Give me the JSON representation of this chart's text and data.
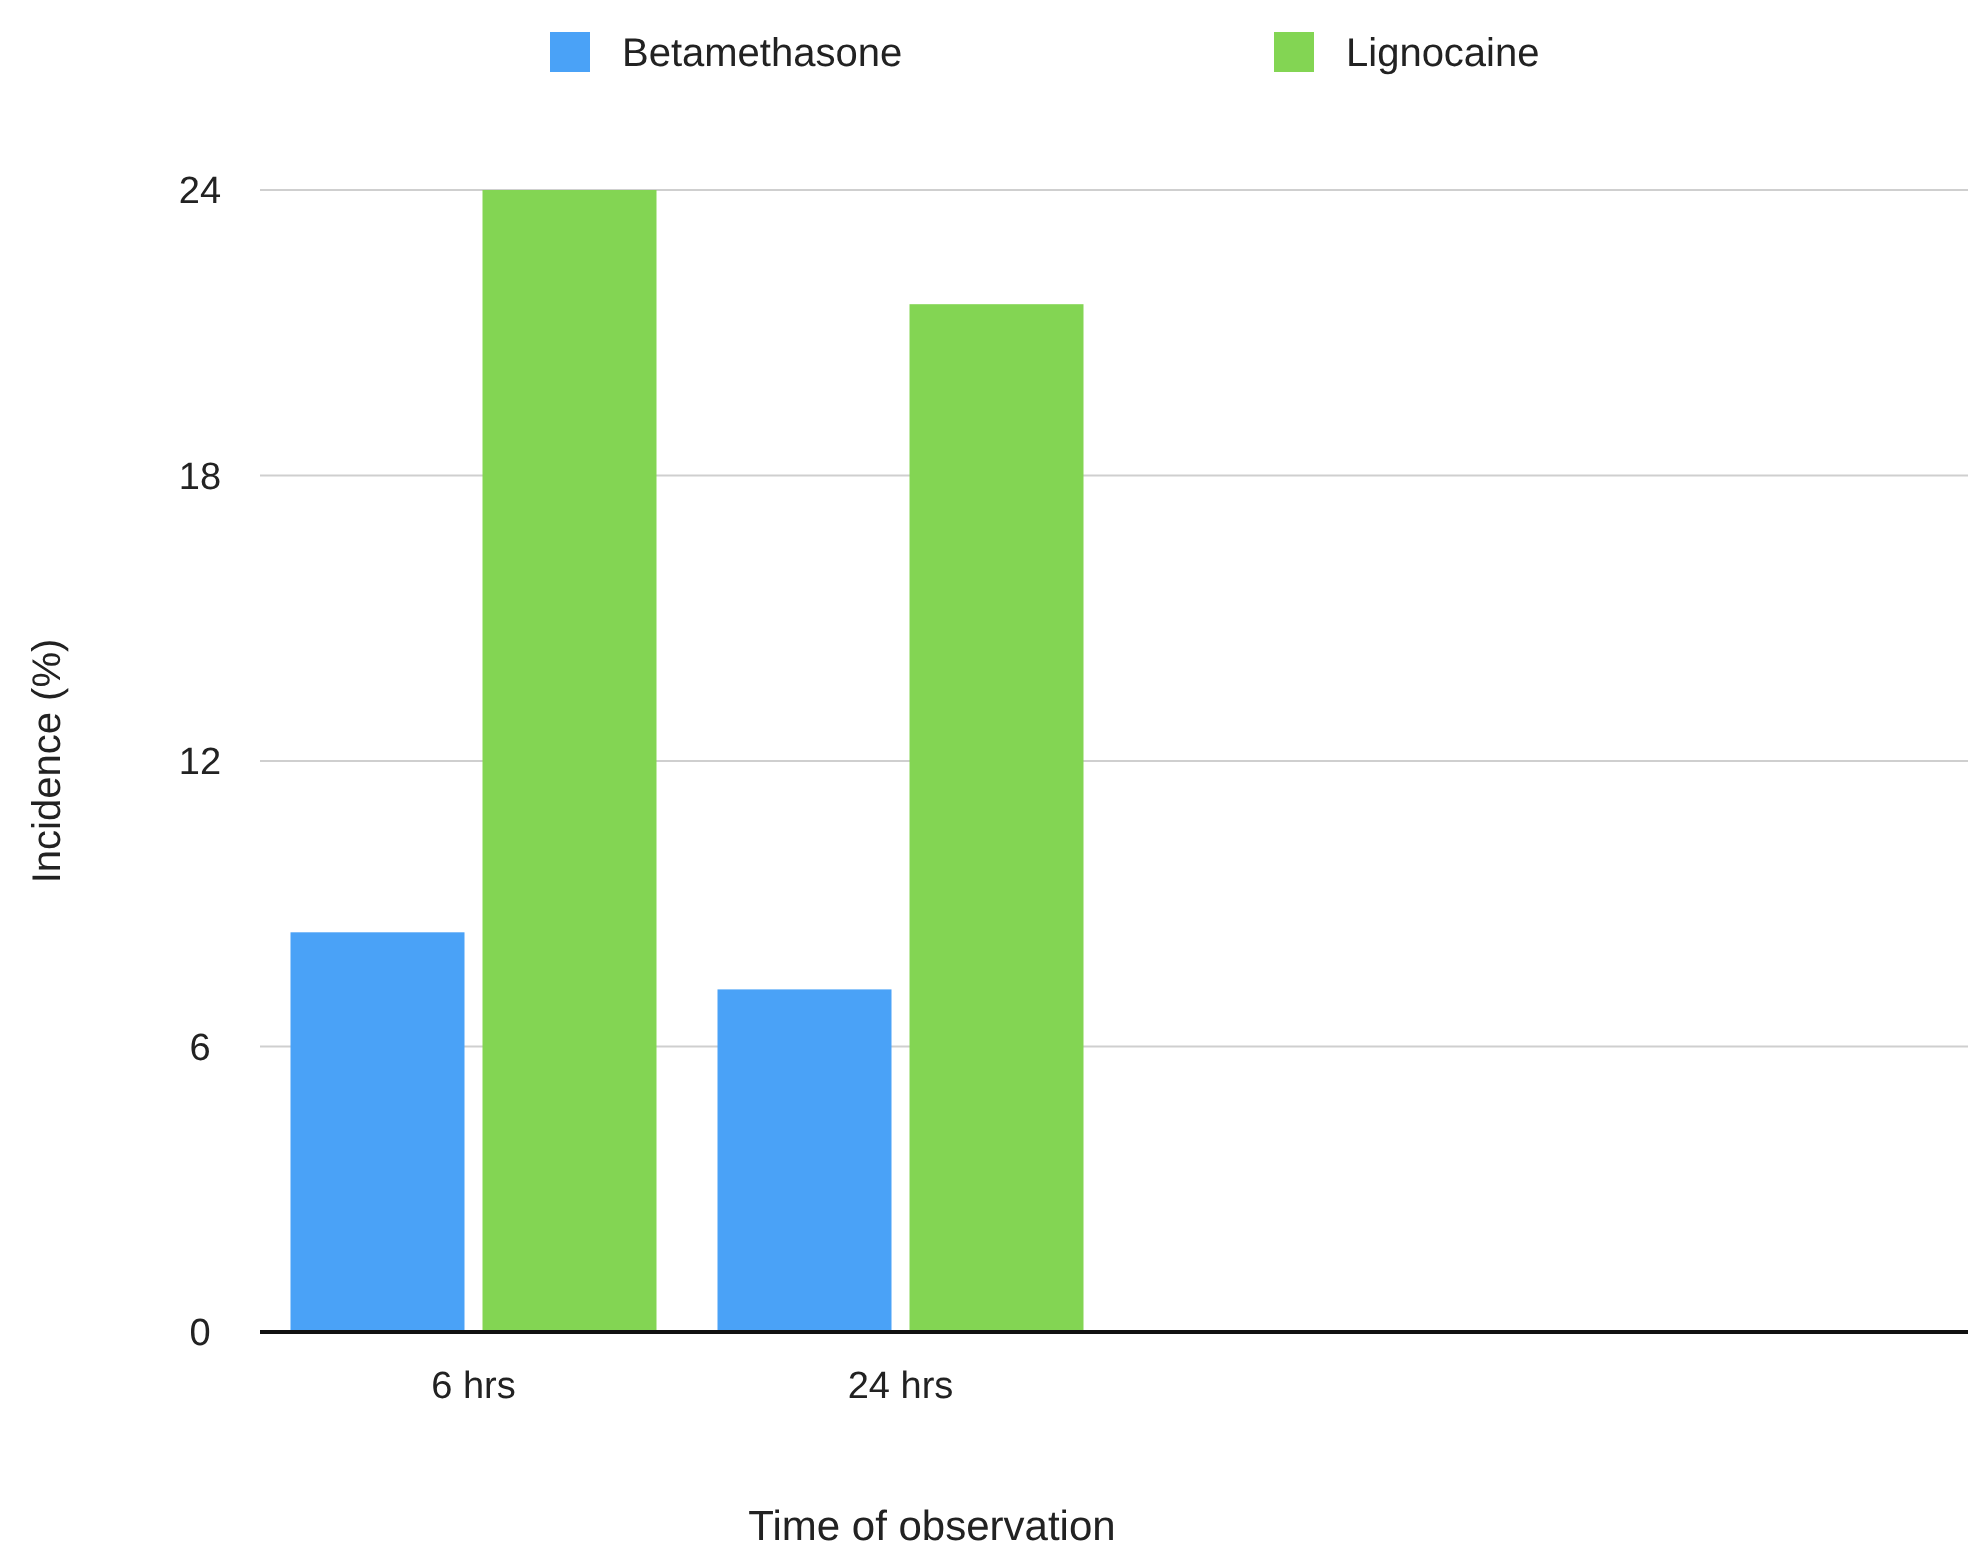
{
  "chart_data": {
    "type": "bar",
    "xlabel": "Time of observation",
    "ylabel": "Incidence (%)",
    "categories": [
      "6 hrs",
      "24 hrs",
      null,
      null
    ],
    "series": [
      {
        "name": "Betamethasone",
        "color": "#4aa2f7",
        "values": [
          8.4,
          7.2,
          null,
          null
        ]
      },
      {
        "name": "Lignocaine",
        "color": "#83d553",
        "values": [
          24,
          21.6,
          null,
          null
        ]
      }
    ],
    "ylim": [
      0,
      24
    ],
    "yticks": [
      0,
      6,
      12,
      18,
      24
    ],
    "grid": "y",
    "legend": "top"
  }
}
